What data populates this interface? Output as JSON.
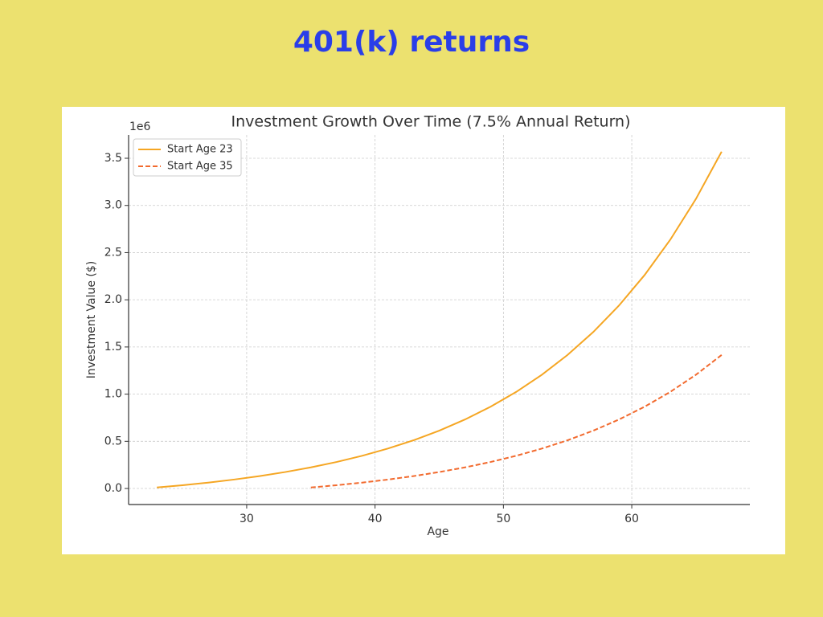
{
  "page_title": "401(k) returns",
  "chart_data": {
    "type": "line",
    "title": "Investment Growth Over Time (7.5% Annual Return)",
    "x_label": "Age",
    "y_label": "Investment Value ($)",
    "y_offset_label": "1e6",
    "x": [
      23,
      25,
      27,
      29,
      31,
      33,
      35,
      37,
      39,
      41,
      43,
      45,
      47,
      49,
      51,
      53,
      55,
      57,
      59,
      61,
      63,
      65,
      67
    ],
    "series": [
      {
        "name": "Start Age 23",
        "color": "#f5a623",
        "linestyle": "solid",
        "values": [
          10750,
          34730,
          62440,
          94460,
          131470,
          174240,
          223660,
          280770,
          346770,
          423050,
          511190,
          613050,
          730760,
          866790,
          1023990,
          1205660,
          1415600,
          1658200,
          1938590,
          2262560,
          2636980,
          3069650,
          3569690
        ]
      },
      {
        "name": "Start Age 35",
        "color": "#f26a2e",
        "linestyle": "dashed",
        "values": [
          null,
          null,
          null,
          null,
          null,
          null,
          10750,
          34730,
          62440,
          94460,
          131470,
          174240,
          223660,
          280770,
          346770,
          423050,
          511190,
          613050,
          730760,
          866790,
          1023990,
          1205660,
          1415600
        ]
      }
    ],
    "xlim": [
      20.8,
      69.2
    ],
    "xticks": [
      30,
      40,
      50,
      60
    ],
    "ylim": [
      -170000,
      3747000
    ],
    "yticks": [
      {
        "value": 0,
        "label": "0.0"
      },
      {
        "value": 500000,
        "label": "0.5"
      },
      {
        "value": 1000000,
        "label": "1.0"
      },
      {
        "value": 1500000,
        "label": "1.5"
      },
      {
        "value": 2000000,
        "label": "2.0"
      },
      {
        "value": 2500000,
        "label": "2.5"
      },
      {
        "value": 3000000,
        "label": "3.0"
      },
      {
        "value": 3500000,
        "label": "3.5"
      }
    ],
    "grid": true,
    "legend": "upper-left"
  }
}
